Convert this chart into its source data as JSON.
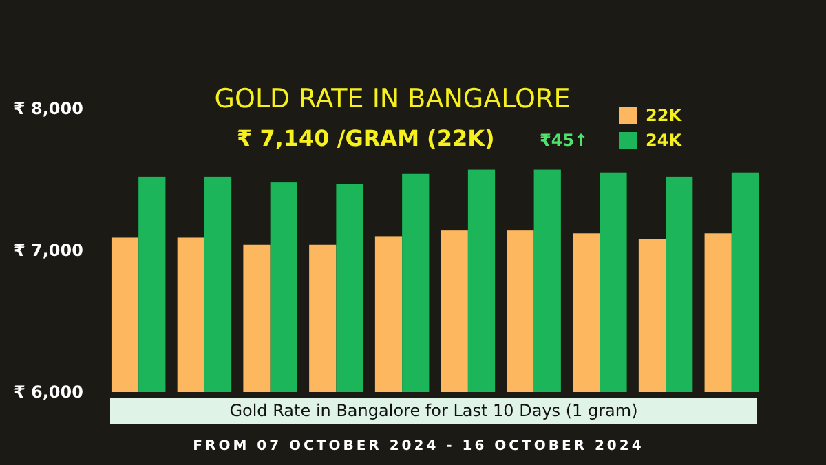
{
  "chart_data": {
    "type": "bar",
    "title": "GOLD RATE IN BANGALORE",
    "subtitle": "₹ 7,140 /GRAM (22K)",
    "annotations": [
      "₹45↑",
      "Gold Rate in Bangalore for Last 10 Days (1 gram)",
      "FROM 07 OCTOBER 2024 - 16 OCTOBER 2024"
    ],
    "categories": [
      null,
      null,
      null,
      null,
      null,
      null,
      null,
      null,
      null,
      null
    ],
    "series": [
      {
        "name": "22K",
        "color": "#fdb85f",
        "values": [
          7090,
          7090,
          7040,
          7040,
          7100,
          7140,
          7140,
          7120,
          7080,
          7120
        ]
      },
      {
        "name": "24K",
        "color": "#1db55a",
        "values": [
          7520,
          7520,
          7480,
          7470,
          7540,
          7570,
          7570,
          7550,
          7520,
          7550
        ]
      }
    ],
    "ylim": [
      6000,
      8000
    ],
    "yticks": [
      {
        "value": 6000,
        "label": "₹ 6,000"
      },
      {
        "value": 7000,
        "label": "₹ 7,000"
      },
      {
        "value": 8000,
        "label": "₹ 8,000"
      }
    ],
    "legend": "top right",
    "grid": false
  }
}
